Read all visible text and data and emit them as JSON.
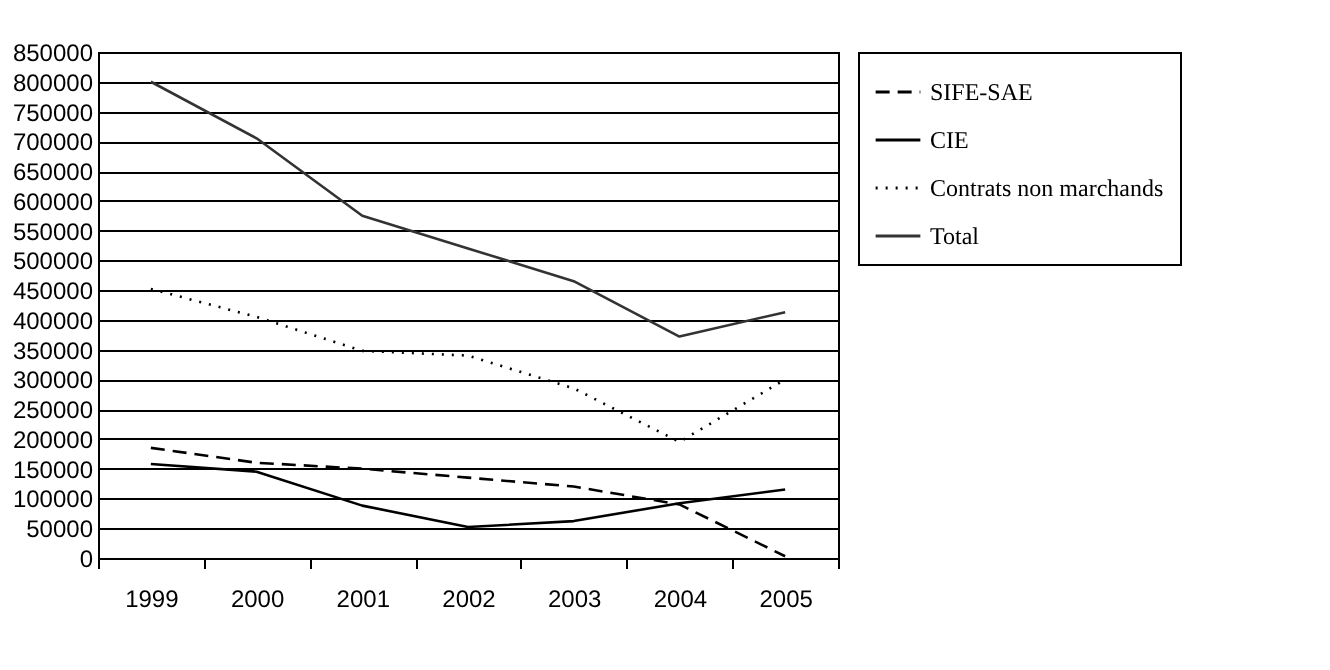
{
  "chart_data": {
    "type": "line",
    "categories": [
      "1999",
      "2000",
      "2001",
      "2002",
      "2003",
      "2004",
      "2005"
    ],
    "series": [
      {
        "name": "SIFE-SAE",
        "color": "#000000",
        "line_style": "dashed",
        "values": [
          185000,
          160000,
          150000,
          135000,
          120000,
          90000,
          3000
        ]
      },
      {
        "name": "CIE",
        "color": "#000000",
        "line_style": "solid",
        "values": [
          158000,
          145000,
          88000,
          52000,
          62000,
          92000,
          115000
        ]
      },
      {
        "name": "Contrats non marchands",
        "color": "#000000",
        "line_style": "dotted",
        "values": [
          452000,
          405000,
          348000,
          340000,
          285000,
          195000,
          300000
        ]
      },
      {
        "name": "Total",
        "color": "#333333",
        "line_style": "solid",
        "values": [
          800000,
          705000,
          575000,
          520000,
          465000,
          372000,
          413000
        ]
      }
    ],
    "ylim": [
      0,
      850000
    ],
    "yticks": [
      0,
      50000,
      100000,
      150000,
      200000,
      250000,
      300000,
      350000,
      400000,
      450000,
      500000,
      550000,
      600000,
      650000,
      700000,
      750000,
      800000,
      850000
    ],
    "grid": "y",
    "legend": "right",
    "marker": "none"
  }
}
